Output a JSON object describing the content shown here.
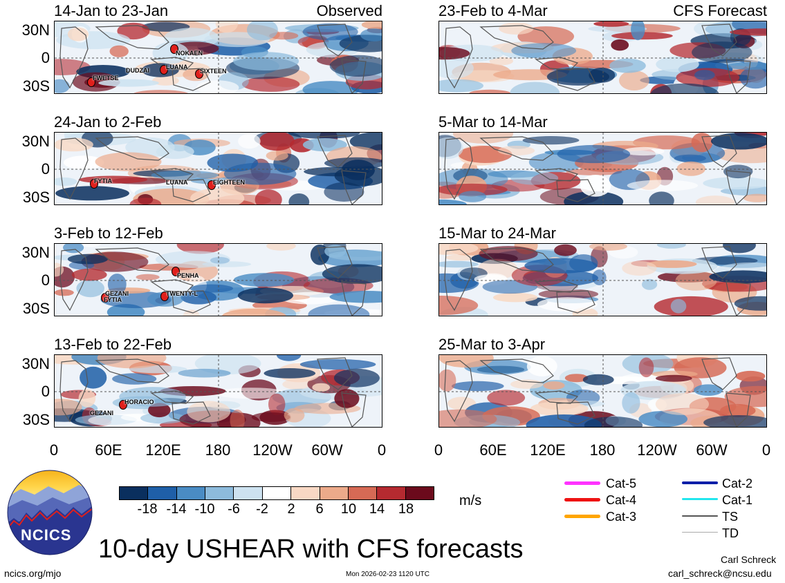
{
  "observed_label": "Observed",
  "forecast_label": "CFS Forecast",
  "left_panels": [
    {
      "title": "14-Jan to 23-Jan",
      "storms": [
        "NOKAEN",
        "DUDZAI",
        "LUANA",
        "SIXTEEN",
        "FWETSE"
      ]
    },
    {
      "title": "24-Jan to 2-Feb",
      "storms": [
        "FYTIA",
        "LUANA",
        "EIGHTEEN"
      ]
    },
    {
      "title": "3-Feb to 12-Feb",
      "storms": [
        "PENHA",
        "GEZANI",
        "FYTIA",
        "TWENTY-L"
      ]
    },
    {
      "title": "13-Feb to 22-Feb",
      "storms": [
        "HORACIO",
        "GEZANI"
      ]
    }
  ],
  "right_panels": [
    {
      "title": "23-Feb to 4-Mar"
    },
    {
      "title": "5-Mar to 14-Mar"
    },
    {
      "title": "15-Mar to 24-Mar"
    },
    {
      "title": "25-Mar to 3-Apr"
    }
  ],
  "lat_labels": [
    "30N",
    "0",
    "30S"
  ],
  "lon_labels": [
    "0",
    "60E",
    "120E",
    "180",
    "120W",
    "60W",
    "0"
  ],
  "colorbar": {
    "labels": [
      "-18",
      "-14",
      "-10",
      "-6",
      "-2",
      "2",
      "6",
      "10",
      "14",
      "18"
    ],
    "colors": [
      "#0a2f5e",
      "#1f5fa8",
      "#4a8cc4",
      "#8dbbdc",
      "#cde2f0",
      "#ffffff",
      "#f8d8c4",
      "#ecaa8a",
      "#d66a55",
      "#b52a30",
      "#6b0a1c"
    ],
    "units": "m/s"
  },
  "legend": [
    {
      "label": "Cat-5",
      "color": "#ff33ff"
    },
    {
      "label": "Cat-4",
      "color": "#ee1111"
    },
    {
      "label": "Cat-3",
      "color": "#ffa500"
    },
    {
      "label": "Cat-2",
      "color": "#0a1fa8"
    },
    {
      "label": "Cat-1",
      "color": "#22e6ee"
    },
    {
      "label": "TS",
      "color": "#555555"
    },
    {
      "label": "TD",
      "color": "#aaaaaa"
    }
  ],
  "main_title": "10-day USHEAR with CFS forecasts",
  "logo_text": "NCICS",
  "website": "ncics.org/mjo",
  "timestamp": "Mon 2026-02-23 1120 UTC",
  "author": "Carl Schreck",
  "email": "carl_schreck@ncsu.edu"
}
